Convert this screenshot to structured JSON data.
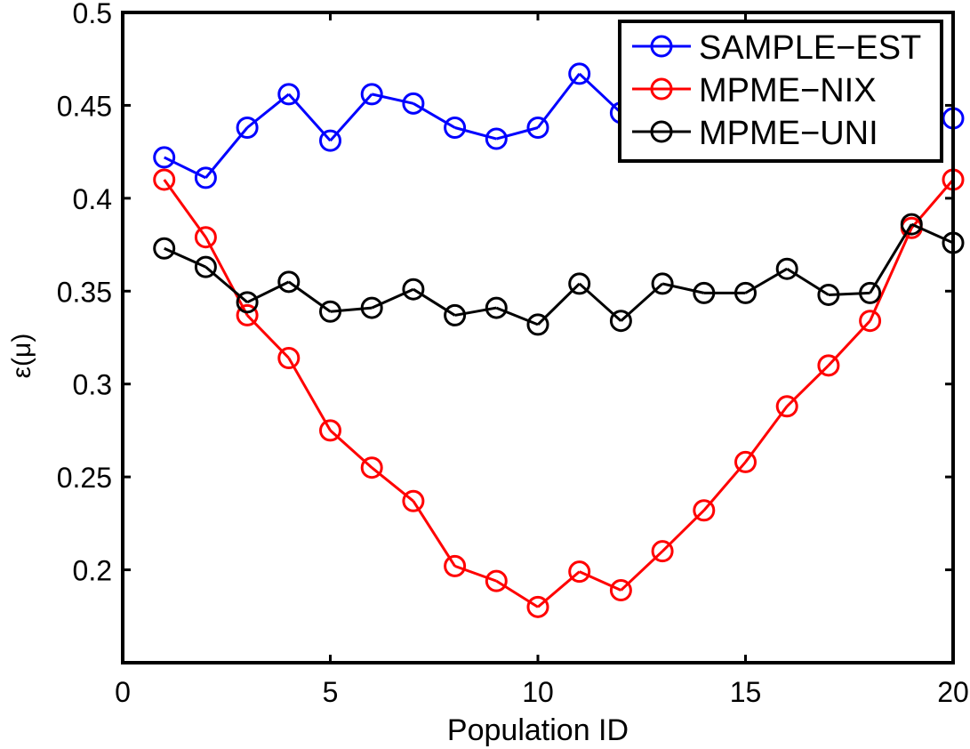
{
  "chart_data": {
    "type": "line",
    "title": "",
    "xlabel": "Population ID",
    "ylabel": "ε(μ)",
    "xlim": [
      0,
      20
    ],
    "ylim": [
      0.15,
      0.5
    ],
    "xticks": [
      "0",
      "5",
      "10",
      "15",
      "20"
    ],
    "yticks": [
      "0.2",
      "0.25",
      "0.3",
      "0.35",
      "0.4",
      "0.45",
      "0.5"
    ],
    "grid": false,
    "legend_position": "top-right",
    "x": [
      1,
      2,
      3,
      4,
      5,
      6,
      7,
      8,
      9,
      10,
      11,
      12,
      13,
      14,
      15,
      16,
      17,
      18,
      19,
      20
    ],
    "series": [
      {
        "name": "SAMPLE−EST",
        "color": "#0000ff",
        "marker": "circle",
        "values": [
          0.422,
          0.411,
          0.438,
          0.456,
          0.431,
          0.456,
          0.451,
          0.438,
          0.432,
          0.438,
          0.467,
          0.446,
          null,
          null,
          null,
          null,
          null,
          null,
          null,
          0.443
        ]
      },
      {
        "name": "MPME−NIX",
        "color": "#ff0000",
        "marker": "circle",
        "values": [
          0.41,
          0.379,
          0.337,
          0.314,
          0.275,
          0.255,
          0.237,
          0.202,
          0.194,
          0.18,
          0.199,
          0.189,
          0.21,
          0.232,
          0.258,
          0.288,
          0.31,
          0.334,
          0.384,
          0.41
        ]
      },
      {
        "name": "MPME−UNI",
        "color": "#000000",
        "marker": "circle",
        "values": [
          0.373,
          0.363,
          0.344,
          0.355,
          0.339,
          0.341,
          0.351,
          0.337,
          0.341,
          0.332,
          0.354,
          0.334,
          0.354,
          0.349,
          0.349,
          0.362,
          0.348,
          0.349,
          0.386,
          0.376
        ]
      }
    ]
  }
}
